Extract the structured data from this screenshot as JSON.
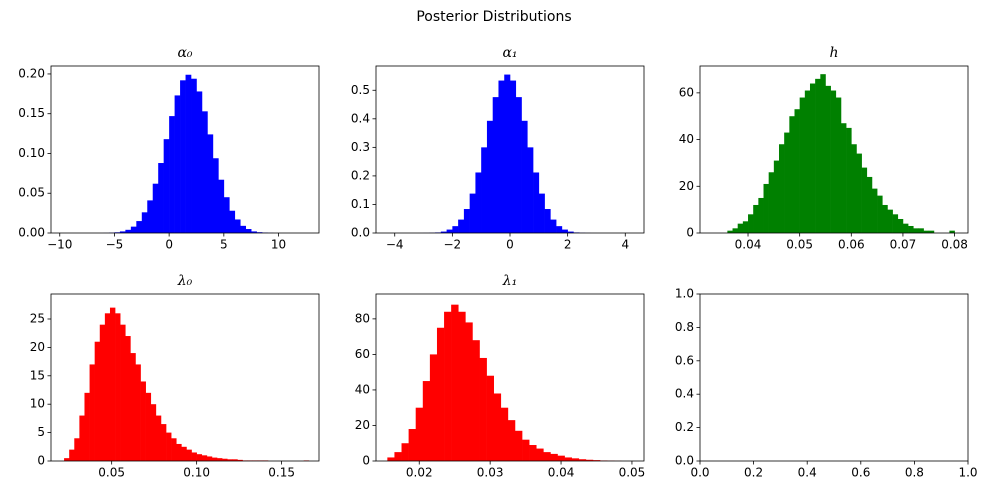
{
  "title": "Posterior Distributions",
  "chart_data": [
    {
      "type": "histogram",
      "title": "α₀",
      "color": "#0000ff",
      "bins": [
        -10,
        -9.5,
        -9,
        -8.5,
        -8,
        -7.5,
        -7,
        -6.5,
        -6,
        -5.5,
        -5,
        -4.5,
        -4,
        -3.5,
        -3,
        -2.5,
        -2,
        -1.5,
        -1,
        -0.5,
        0,
        0.5,
        1,
        1.5,
        2,
        2.5,
        3,
        3.5,
        4,
        4.5,
        5,
        5.5,
        6,
        6.5,
        7,
        7.5,
        8,
        8.5,
        9,
        9.5,
        10,
        10.5,
        11,
        11.5,
        12,
        12.5
      ],
      "values": [
        0,
        0,
        0,
        0,
        0,
        0,
        0,
        0,
        0.0001,
        0.0004,
        0.0009,
        0.002,
        0.004,
        0.008,
        0.015,
        0.026,
        0.041,
        0.062,
        0.088,
        0.118,
        0.147,
        0.173,
        0.192,
        0.199,
        0.194,
        0.178,
        0.153,
        0.124,
        0.094,
        0.067,
        0.045,
        0.028,
        0.017,
        0.009,
        0.005,
        0.002,
        0.001,
        0.0005,
        0.0002,
        0,
        0,
        0,
        0,
        0,
        0
      ],
      "xlim": [
        -10.8,
        13.7
      ],
      "ylim": [
        0,
        0.21
      ],
      "xticks": [
        {
          "value": -10,
          "label": "−10"
        },
        {
          "value": -5,
          "label": "−5"
        },
        0,
        5,
        10
      ],
      "yticks": [
        {
          "value": 0,
          "label": "0.00"
        },
        0.05,
        {
          "value": 0.1,
          "label": "0.10"
        },
        0.15,
        {
          "value": 0.2,
          "label": "0.20"
        }
      ]
    },
    {
      "type": "histogram",
      "title": "α₁",
      "color": "#0000ff",
      "bins": [
        -4.2,
        -4,
        -3.8,
        -3.6,
        -3.4,
        -3.2,
        -3,
        -2.8,
        -2.6,
        -2.4,
        -2.2,
        -2,
        -1.8,
        -1.6,
        -1.4,
        -1.2,
        -1,
        -0.8,
        -0.6,
        -0.4,
        -0.2,
        0,
        0.2,
        0.4,
        0.6,
        0.8,
        1,
        1.2,
        1.4,
        1.6,
        1.8,
        2,
        2.2,
        2.4,
        2.6,
        2.8,
        3,
        3.2,
        3.4,
        3.6,
        3.8,
        4,
        4.2
      ],
      "values": [
        0,
        0,
        0,
        0,
        0,
        0.0001,
        0.0003,
        0.0008,
        0.002,
        0.005,
        0.012,
        0.024,
        0.047,
        0.084,
        0.138,
        0.212,
        0.3,
        0.393,
        0.476,
        0.534,
        0.555,
        0.534,
        0.476,
        0.393,
        0.3,
        0.212,
        0.138,
        0.084,
        0.047,
        0.024,
        0.012,
        0.005,
        0.002,
        0.0008,
        0.0003,
        0.0001,
        0,
        0,
        0,
        0,
        0,
        0
      ],
      "xlim": [
        -4.65,
        4.65
      ],
      "ylim": [
        0,
        0.585
      ],
      "xticks": [
        {
          "value": -4,
          "label": "−4"
        },
        {
          "value": -2,
          "label": "−2"
        },
        0,
        2,
        4
      ],
      "yticks": [
        {
          "value": 0,
          "label": "0.0"
        },
        0.1,
        0.2,
        0.3,
        0.4,
        0.5
      ]
    },
    {
      "type": "histogram",
      "title": "h",
      "color": "#008000",
      "bins": [
        0.034,
        0.035,
        0.036,
        0.037,
        0.038,
        0.039,
        0.04,
        0.041,
        0.042,
        0.043,
        0.044,
        0.045,
        0.046,
        0.047,
        0.048,
        0.049,
        0.05,
        0.051,
        0.052,
        0.053,
        0.054,
        0.055,
        0.056,
        0.057,
        0.058,
        0.059,
        0.06,
        0.061,
        0.062,
        0.063,
        0.064,
        0.065,
        0.066,
        0.067,
        0.068,
        0.069,
        0.07,
        0.071,
        0.072,
        0.073,
        0.074,
        0.075,
        0.076,
        0.077,
        0.078,
        0.079,
        0.08
      ],
      "values": [
        0,
        0,
        1,
        2,
        4,
        5,
        8,
        12,
        15,
        21,
        26,
        31,
        38,
        43,
        50,
        53,
        58,
        61,
        64,
        66,
        68,
        63,
        61,
        58,
        47,
        45,
        38,
        34,
        28,
        24,
        19,
        16,
        12,
        10,
        8,
        6,
        4,
        3,
        2,
        2,
        1,
        1,
        0,
        0,
        0,
        1
      ],
      "xlim": [
        0.0307,
        0.0826
      ],
      "ylim": [
        0,
        71.5
      ],
      "xticks": [
        0.04,
        0.05,
        0.06,
        0.07,
        0.08
      ],
      "yticks": [
        0,
        20,
        40,
        60
      ]
    },
    {
      "type": "histogram",
      "title": "λ₀",
      "color": "#ff0000",
      "bins": [
        0.022,
        0.025,
        0.028,
        0.031,
        0.034,
        0.037,
        0.04,
        0.043,
        0.046,
        0.049,
        0.052,
        0.055,
        0.058,
        0.061,
        0.064,
        0.067,
        0.07,
        0.073,
        0.076,
        0.079,
        0.082,
        0.085,
        0.088,
        0.091,
        0.094,
        0.097,
        0.1,
        0.103,
        0.106,
        0.109,
        0.112,
        0.115,
        0.118,
        0.121,
        0.124,
        0.127,
        0.13,
        0.133,
        0.136,
        0.139,
        0.142,
        0.145,
        0.148,
        0.151,
        0.154,
        0.157,
        0.16,
        0.163,
        0.166
      ],
      "values": [
        0.5,
        2,
        4,
        8,
        12,
        17,
        21,
        24,
        26,
        27,
        26,
        24,
        22,
        19,
        17,
        14,
        12,
        10,
        8,
        6.5,
        5,
        4,
        3,
        2.5,
        2,
        1.5,
        1.2,
        1,
        0.8,
        0.6,
        0.5,
        0.4,
        0.3,
        0.3,
        0.2,
        0.1,
        0.1,
        0.1,
        0.1,
        0.1,
        0,
        0,
        0,
        0,
        0,
        0,
        0,
        0.1
      ],
      "xlim": [
        0.0143,
        0.172
      ],
      "ylim": [
        0,
        29.4
      ],
      "xticks": [
        0.05,
        {
          "value": 0.1,
          "label": "0.10"
        },
        0.15
      ],
      "yticks": [
        0,
        5,
        10,
        15,
        20,
        25
      ]
    },
    {
      "type": "histogram",
      "title": "λ₁",
      "color": "#ff0000",
      "bins": [
        0.0155,
        0.0165,
        0.0175,
        0.0185,
        0.0195,
        0.0205,
        0.0215,
        0.0225,
        0.0235,
        0.0245,
        0.0255,
        0.0265,
        0.0275,
        0.0285,
        0.0295,
        0.0305,
        0.0315,
        0.0325,
        0.0335,
        0.0345,
        0.0355,
        0.0365,
        0.0375,
        0.0385,
        0.0395,
        0.0405,
        0.0415,
        0.0425,
        0.0435,
        0.0445,
        0.0455,
        0.0465,
        0.0475,
        0.0485
      ],
      "values": [
        2,
        5,
        10,
        18,
        30,
        45,
        60,
        75,
        84,
        88,
        84,
        78,
        68,
        58,
        48,
        38,
        30,
        23,
        17,
        12,
        9,
        7,
        5,
        4,
        3,
        2,
        1.5,
        1,
        0.7,
        0.5,
        0.3,
        0.2,
        0.1
      ],
      "xlim": [
        0.0139,
        0.0517
      ],
      "ylim": [
        0,
        94
      ],
      "xticks": [
        0.02,
        0.03,
        0.04,
        0.05
      ],
      "yticks": [
        0,
        20,
        40,
        60,
        80
      ]
    },
    {
      "type": "empty",
      "xlim": [
        0,
        1
      ],
      "ylim": [
        0,
        1
      ],
      "xticks": [
        {
          "value": 0,
          "label": "0.0"
        },
        0.2,
        0.4,
        0.6,
        0.8,
        {
          "value": 1,
          "label": "1.0"
        }
      ],
      "yticks": [
        {
          "value": 0,
          "label": "0.0"
        },
        0.2,
        0.4,
        0.6,
        0.8,
        {
          "value": 1,
          "label": "1.0"
        }
      ]
    }
  ]
}
